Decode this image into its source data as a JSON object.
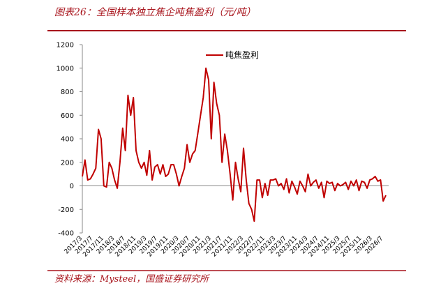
{
  "chart_data": {
    "type": "line",
    "title": "图表26：全国样本独立焦企吨焦盈利（元/吨）",
    "source": "资料来源：Mysteel，国盛证券研究所",
    "categories": [
      "2017/3",
      null,
      null,
      null,
      "2017/7",
      null,
      null,
      null,
      "2017/11",
      null,
      null,
      null,
      "2018/3",
      null,
      null,
      null,
      "2018/7",
      null,
      null,
      null,
      "2018/11",
      null,
      null,
      null,
      "2019/3",
      null,
      null,
      null,
      "2019/7",
      null,
      null,
      null,
      "2019/11",
      null,
      null,
      null,
      "2020/3",
      null,
      null,
      null,
      "2020/7",
      null,
      null,
      null,
      "2020/11",
      null,
      null,
      null,
      "2021/3",
      null,
      null,
      null,
      "2021/7",
      null,
      null,
      null,
      "2021/11",
      null,
      null,
      null,
      "2022/3",
      null,
      null,
      null,
      "2022/7",
      null,
      null,
      null,
      "2022/11",
      null,
      null,
      null,
      "2023/3",
      null,
      null,
      null,
      "2023/7",
      null,
      null,
      null,
      "2023/11",
      null,
      null,
      null,
      "2024/3",
      null,
      null,
      null,
      "2024/7",
      null,
      null,
      null,
      "2024/11",
      null,
      null,
      null,
      "2025/3",
      null,
      null,
      null,
      "2025/7",
      null,
      null,
      null,
      "2025/11",
      null,
      null,
      null,
      "2026/3",
      null,
      null,
      null,
      "2026/7",
      null
    ],
    "series": [
      {
        "name": "吨焦盈利",
        "color": "#c00000",
        "values": [
          80,
          220,
          50,
          60,
          100,
          150,
          480,
          400,
          0,
          -10,
          200,
          150,
          50,
          -20,
          200,
          490,
          300,
          770,
          600,
          750,
          300,
          200,
          150,
          200,
          90,
          300,
          50,
          160,
          180,
          100,
          180,
          80,
          100,
          180,
          180,
          100,
          0,
          80,
          150,
          350,
          200,
          270,
          300,
          450,
          600,
          750,
          1000,
          900,
          400,
          880,
          700,
          600,
          200,
          440,
          300,
          100,
          -120,
          200,
          60,
          -50,
          320,
          50,
          -150,
          -200,
          -300,
          50,
          50,
          -100,
          20,
          -80,
          50,
          50,
          60,
          0,
          20,
          -30,
          60,
          -60,
          40,
          -10,
          -70,
          40,
          0,
          -50,
          100,
          0,
          30,
          50,
          -20,
          30,
          -100,
          40,
          20,
          30,
          -40,
          20,
          0,
          10,
          30,
          -30,
          40,
          0,
          50,
          -40,
          40,
          30,
          -20,
          50,
          60,
          80,
          40,
          50,
          -130,
          -80
        ]
      }
    ],
    "ylim": [
      -400,
      1200
    ],
    "yticks": [
      -400,
      -200,
      0,
      200,
      400,
      600,
      800,
      1000,
      1200
    ]
  }
}
